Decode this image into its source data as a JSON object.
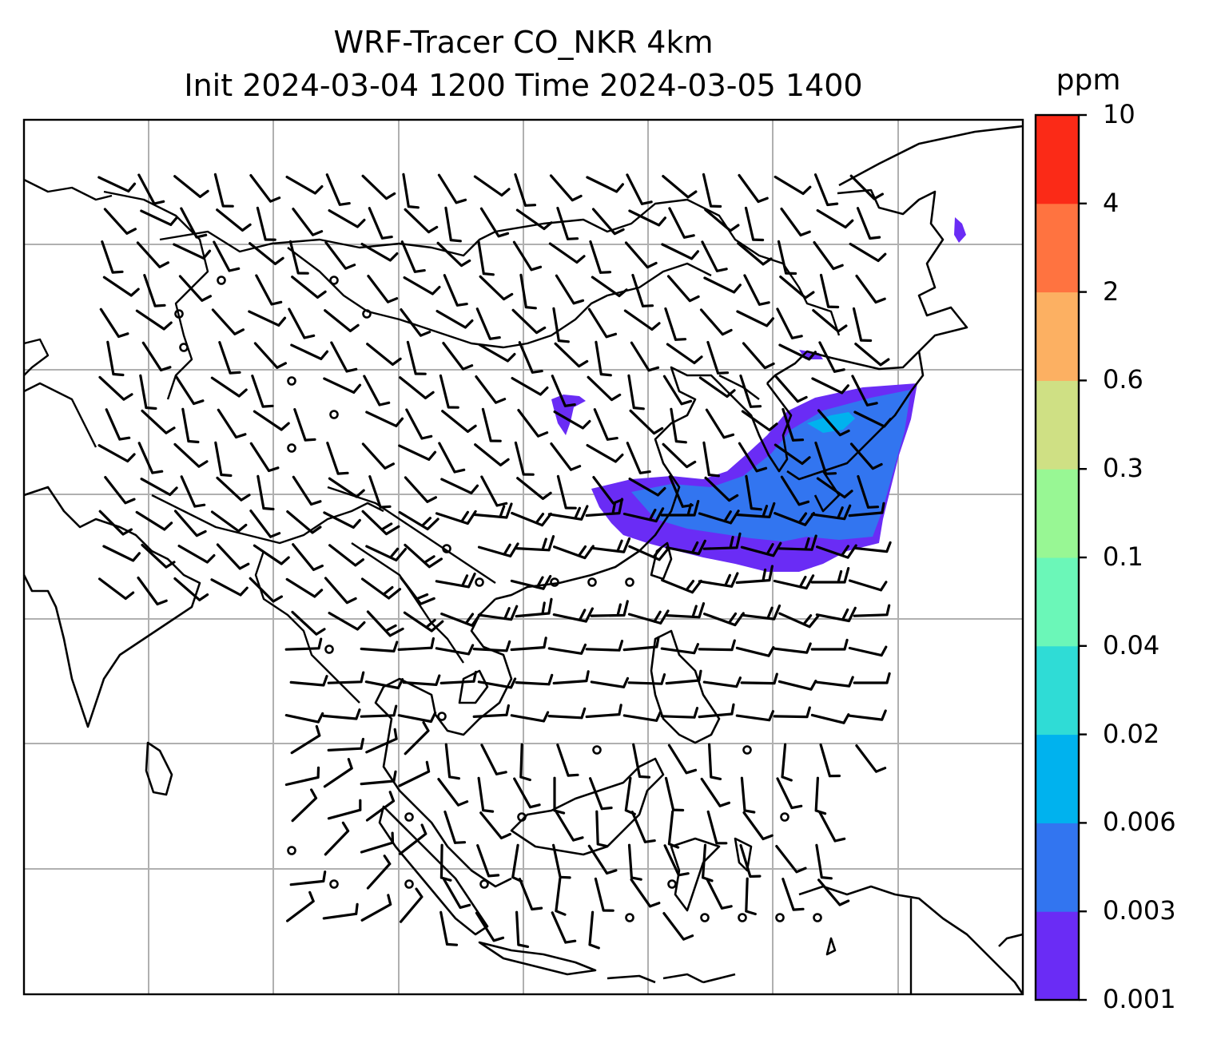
{
  "title": {
    "line1": "WRF-Tracer CO_NKR 4km",
    "line2": "Init 2024-03-04 1200 Time 2024-03-05 1400"
  },
  "colorbar": {
    "unit": "ppm",
    "levels": [
      "0.001",
      "0.003",
      "0.006",
      "0.02",
      "0.04",
      "0.1",
      "0.3",
      "0.6",
      "2",
      "4",
      "10"
    ],
    "colors": [
      "#6a2cf5",
      "#3275f0",
      "#00b2ee",
      "#2fdcd6",
      "#6bf7b8",
      "#98f794",
      "#cfe084",
      "#fcb062",
      "#ff7340",
      "#fb2a17"
    ]
  },
  "map": {
    "gridlines": true,
    "plume_colors": [
      "#6a2cf5",
      "#3275f0",
      "#00b2ee"
    ]
  }
}
